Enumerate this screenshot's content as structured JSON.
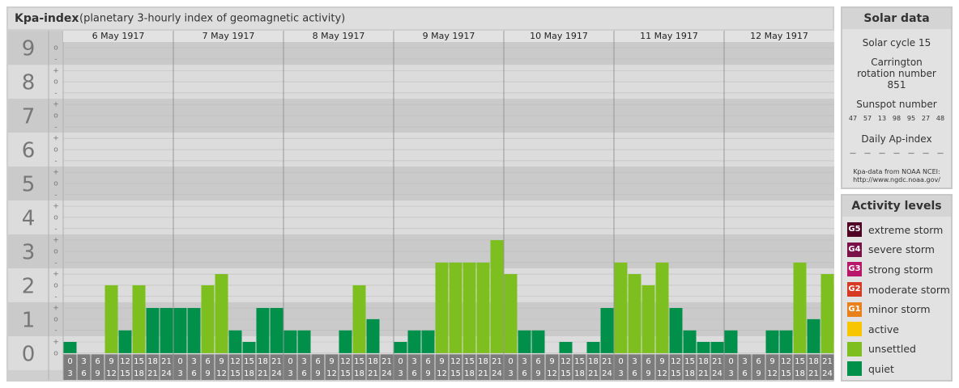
{
  "chart_data": {
    "type": "bar",
    "title": "Kpa-index",
    "subtitle": "(planetary 3-hourly index of geomagnetic activity)",
    "days": [
      "6 May 1917",
      "7 May 1917",
      "8 May 1917",
      "9 May 1917",
      "10 May 1917",
      "11 May 1917",
      "12 May 1917"
    ],
    "intervals": [
      [
        "0",
        "3"
      ],
      [
        "3",
        "6"
      ],
      [
        "6",
        "9"
      ],
      [
        "9",
        "12"
      ],
      [
        "12",
        "15"
      ],
      [
        "15",
        "18"
      ],
      [
        "18",
        "21"
      ],
      [
        "21",
        "24"
      ]
    ],
    "values": [
      0.33,
      0,
      0,
      2,
      0.67,
      2,
      1.33,
      1.33,
      1.33,
      1.33,
      2,
      2.33,
      0.67,
      0.33,
      1.33,
      1.33,
      0.67,
      0.67,
      0,
      0,
      0.67,
      2,
      1,
      0,
      0.33,
      0.67,
      0.67,
      2.67,
      2.67,
      2.67,
      2.67,
      3.33,
      2.33,
      0.67,
      0.67,
      0,
      0.33,
      0,
      0.33,
      1.33,
      2.67,
      2.33,
      2,
      2.67,
      1.33,
      0.67,
      0.33,
      0.33,
      0.67,
      0,
      0,
      0.67,
      0.67,
      2.67,
      1,
      2.33
    ],
    "colors": [
      "#00904a",
      "#00904a",
      "#00904a",
      "#7cbf1e",
      "#00904a",
      "#7cbf1e",
      "#00904a",
      "#00904a",
      "#00904a",
      "#00904a",
      "#7cbf1e",
      "#7cbf1e",
      "#00904a",
      "#00904a",
      "#00904a",
      "#00904a",
      "#00904a",
      "#00904a",
      "#00904a",
      "#00904a",
      "#00904a",
      "#7cbf1e",
      "#00904a",
      "#00904a",
      "#00904a",
      "#00904a",
      "#00904a",
      "#7cbf1e",
      "#7cbf1e",
      "#7cbf1e",
      "#7cbf1e",
      "#7cbf1e",
      "#7cbf1e",
      "#00904a",
      "#00904a",
      "#00904a",
      "#00904a",
      "#00904a",
      "#00904a",
      "#00904a",
      "#7cbf1e",
      "#7cbf1e",
      "#7cbf1e",
      "#7cbf1e",
      "#00904a",
      "#00904a",
      "#00904a",
      "#00904a",
      "#00904a",
      "#00904a",
      "#00904a",
      "#00904a",
      "#00904a",
      "#7cbf1e",
      "#00904a",
      "#7cbf1e"
    ],
    "ylim": [
      -0.79,
      9.17
    ],
    "yticks": [
      0,
      1,
      2,
      3,
      4,
      5,
      6,
      7,
      8,
      9
    ],
    "minor_ticks": [
      {
        "value": 0,
        "label": "o"
      },
      {
        "value": 0.33,
        "label": "+"
      },
      {
        "value": 0.67,
        "label": "-"
      },
      {
        "value": 1,
        "label": "o"
      },
      {
        "value": 1.33,
        "label": "+"
      },
      {
        "value": 1.67,
        "label": "-"
      },
      {
        "value": 2,
        "label": "o"
      },
      {
        "value": 2.33,
        "label": "+"
      },
      {
        "value": 2.67,
        "label": "-"
      },
      {
        "value": 3,
        "label": "o"
      },
      {
        "value": 3.33,
        "label": "+"
      },
      {
        "value": 3.67,
        "label": "-"
      },
      {
        "value": 4,
        "label": "o"
      },
      {
        "value": 4.33,
        "label": "+"
      },
      {
        "value": 4.67,
        "label": "-"
      },
      {
        "value": 5,
        "label": "o"
      },
      {
        "value": 5.33,
        "label": "+"
      },
      {
        "value": 5.67,
        "label": "-"
      },
      {
        "value": 6,
        "label": "o"
      },
      {
        "value": 6.33,
        "label": "+"
      },
      {
        "value": 6.67,
        "label": "-"
      },
      {
        "value": 7,
        "label": "o"
      },
      {
        "value": 7.33,
        "label": "+"
      },
      {
        "value": 7.67,
        "label": "-"
      },
      {
        "value": 8,
        "label": "o"
      },
      {
        "value": 8.33,
        "label": "+"
      },
      {
        "value": 8.67,
        "label": "-"
      },
      {
        "value": 9,
        "label": "o"
      }
    ],
    "grid": true
  },
  "solar_data": {
    "title": "Solar data",
    "cycle": "Solar cycle 15",
    "carrington": "Carrington rotation number 851",
    "sunspot_title": "Sunspot number",
    "sunspots": [
      47,
      57,
      13,
      98,
      95,
      27,
      48
    ],
    "ap_title": "Daily Ap-index",
    "ap": [
      "—",
      "—",
      "—",
      "—",
      "—",
      "—",
      "—"
    ],
    "source": "Kpa-data from NOAA NCEI:",
    "source_url": "http://www.ngdc.noaa.gov/"
  },
  "activity_levels": {
    "title": "Activity levels",
    "levels": [
      {
        "badge": "G5",
        "label": "extreme storm",
        "color": "#4f0024"
      },
      {
        "badge": "G4",
        "label": "severe storm",
        "color": "#7a1048"
      },
      {
        "badge": "G3",
        "label": "strong storm",
        "color": "#b8166a"
      },
      {
        "badge": "G2",
        "label": "moderate storm",
        "color": "#d63a22"
      },
      {
        "badge": "G1",
        "label": "minor storm",
        "color": "#e8811c"
      },
      {
        "label": "active",
        "color": "#f7c600"
      },
      {
        "label": "unsettled",
        "color": "#7cbf1e"
      },
      {
        "label": "quiet",
        "color": "#00904a"
      }
    ]
  }
}
